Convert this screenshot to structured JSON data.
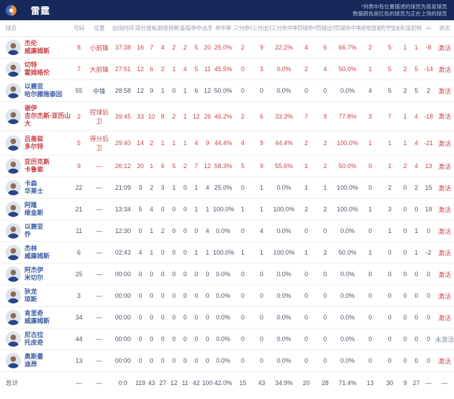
{
  "team_bar": {
    "team_name": "雷霆",
    "note_line1": "*列表中有位置描述的球员为首发球员",
    "note_line2": "数据颜色是红色的球员为正在上场的球员"
  },
  "columns": [
    "球员",
    "号码",
    "位置",
    "出场时间",
    "得分",
    "篮板",
    "助攻",
    "抢断",
    "盖帽",
    "命中",
    "出手",
    "命中率",
    "三分命中",
    "三分出手",
    "三分命中率",
    "罚球命中",
    "罚球出手",
    "罚球命中率",
    "进攻篮板",
    "防守篮板",
    "失误",
    "犯规",
    "+/-",
    "状态"
  ],
  "stat_keys": [
    "points",
    "rebounds",
    "assists",
    "steals",
    "blocks",
    "fgm",
    "fga",
    "fg-pct",
    "3pm",
    "3pa",
    "3p-pct",
    "ftm",
    "fta",
    "ft-pct",
    "oreb",
    "dreb",
    "turnovers",
    "fouls",
    "plus-minus"
  ],
  "labels": {
    "active": "激活",
    "inactive": "未激活",
    "total": "总计",
    "empty": "—"
  },
  "colors": {
    "header_bar": "#17295a",
    "on_court_red": "#c8444c",
    "name_blue": "#3d5fa5",
    "muted_text": "#4a5568",
    "column_header_text": "#94a0b4",
    "inactive_gray": "#8a94a6"
  },
  "players": [
    {
      "name1": "杰伦",
      "name2": "威廉姆斯",
      "number": "8",
      "position": "小前锋",
      "time": "37:38",
      "on_court": true,
      "stats": [
        16,
        7,
        4,
        2,
        2,
        5,
        20,
        "25.0%",
        2,
        9,
        "22.2%",
        4,
        6,
        "66.7%",
        2,
        5,
        1,
        1,
        "-8"
      ],
      "status": "激活"
    },
    {
      "name1": "切特",
      "name2": "霍姆格伦",
      "number": "7",
      "position": "大前锋",
      "time": "27:51",
      "on_court": true,
      "stats": [
        12,
        6,
        2,
        1,
        4,
        5,
        11,
        "45.5%",
        0,
        3,
        "0.0%",
        2,
        4,
        "50.0%",
        1,
        5,
        2,
        5,
        "-14"
      ],
      "status": "激活"
    },
    {
      "name1": "以赛亚",
      "name2": "哈尔滕施泰因",
      "number": "55",
      "position": "中锋",
      "time": "28:58",
      "on_court": false,
      "stats": [
        12,
        9,
        1,
        0,
        1,
        6,
        12,
        "50.0%",
        0,
        0,
        "0.0%",
        0,
        0,
        "0.0%",
        4,
        5,
        2,
        5,
        "2"
      ],
      "status": "激活"
    },
    {
      "name1": "谢伊",
      "name2": "吉尔杰斯-亚历山大",
      "number": "2",
      "position": "控球后卫",
      "time": "39:45",
      "on_court": true,
      "stats": [
        33,
        10,
        8,
        2,
        1,
        12,
        26,
        "46.2%",
        2,
        6,
        "33.3%",
        7,
        9,
        "77.8%",
        3,
        7,
        1,
        4,
        "-18"
      ],
      "status": "激活"
    },
    {
      "name1": "吕盖兹",
      "name2": "多尔特",
      "number": "5",
      "position": "得分后卫",
      "time": "29:40",
      "on_court": true,
      "stats": [
        14,
        2,
        1,
        1,
        1,
        4,
        9,
        "44.4%",
        4,
        9,
        "44.4%",
        2,
        2,
        "100.0%",
        1,
        1,
        1,
        4,
        "-21"
      ],
      "status": "激活"
    },
    {
      "name1": "亚历克斯",
      "name2": "卡鲁索",
      "number": "9",
      "position": "—",
      "time": "26:12",
      "on_court": true,
      "stats": [
        20,
        1,
        6,
        5,
        2,
        7,
        12,
        "58.3%",
        5,
        9,
        "55.6%",
        1,
        2,
        "50.0%",
        0,
        1,
        2,
        4,
        "13"
      ],
      "status": "激活"
    },
    {
      "name1": "卡森",
      "name2": "华莱士",
      "number": "22",
      "position": "—",
      "time": "21:09",
      "on_court": false,
      "stats": [
        3,
        2,
        3,
        1,
        0,
        1,
        4,
        "25.0%",
        0,
        1,
        "0.0%",
        1,
        1,
        "100.0%",
        0,
        2,
        0,
        2,
        "15"
      ],
      "status": "激活"
    },
    {
      "name1": "阿隆",
      "name2": "维金斯",
      "number": "21",
      "position": "—",
      "time": "13:34",
      "on_court": false,
      "stats": [
        5,
        4,
        0,
        0,
        0,
        1,
        1,
        "100.0%",
        1,
        1,
        "100.0%",
        2,
        2,
        "100.0%",
        1,
        3,
        0,
        0,
        "19"
      ],
      "status": "激活"
    },
    {
      "name1": "以赛亚",
      "name2": "乔",
      "number": "11",
      "position": "—",
      "time": "12:30",
      "on_court": false,
      "stats": [
        0,
        1,
        2,
        0,
        0,
        0,
        4,
        "0.0%",
        0,
        4,
        "0.0%",
        0,
        0,
        "0.0%",
        0,
        1,
        0,
        1,
        "0"
      ],
      "status": "激活"
    },
    {
      "name1": "杰林",
      "name2": "威廉姆斯",
      "number": "6",
      "position": "—",
      "time": "02:43",
      "on_court": false,
      "stats": [
        4,
        1,
        0,
        0,
        0,
        1,
        1,
        "100.0%",
        1,
        1,
        "100.0%",
        1,
        2,
        "50.0%",
        1,
        0,
        0,
        1,
        "-2"
      ],
      "status": "激活"
    },
    {
      "name1": "阿杰伊",
      "name2": "米切尔",
      "number": "25",
      "position": "—",
      "time": "00:00",
      "on_court": false,
      "stats": [
        0,
        0,
        0,
        0,
        0,
        0,
        0,
        "0.0%",
        0,
        0,
        "0.0%",
        0,
        0,
        "0.0%",
        0,
        0,
        0,
        0,
        "0"
      ],
      "status": "激活"
    },
    {
      "name1": "狄龙",
      "name2": "琼斯",
      "number": "3",
      "position": "—",
      "time": "00:00",
      "on_court": false,
      "stats": [
        0,
        0,
        0,
        0,
        0,
        0,
        0,
        "0.0%",
        0,
        0,
        "0.0%",
        0,
        0,
        "0.0%",
        0,
        0,
        0,
        0,
        "0"
      ],
      "status": "激活"
    },
    {
      "name1": "肯里奇",
      "name2": "威廉姆斯",
      "number": "34",
      "position": "—",
      "time": "00:00",
      "on_court": false,
      "stats": [
        0,
        0,
        0,
        0,
        0,
        0,
        0,
        "0.0%",
        0,
        0,
        "0.0%",
        0,
        0,
        "0.0%",
        0,
        0,
        0,
        0,
        "0"
      ],
      "status": "激活"
    },
    {
      "name1": "尼古拉",
      "name2": "托皮奇",
      "number": "44",
      "position": "—",
      "time": "00:00",
      "on_court": false,
      "stats": [
        0,
        0,
        0,
        0,
        0,
        0,
        0,
        "0.0%",
        0,
        0,
        "0.0%",
        0,
        0,
        "0.0%",
        0,
        0,
        0,
        0,
        "0"
      ],
      "status": "未激活"
    },
    {
      "name1": "奥斯曼",
      "name2": "迪昂",
      "number": "13",
      "position": "—",
      "time": "00:00",
      "on_court": false,
      "stats": [
        0,
        0,
        0,
        0,
        0,
        0,
        0,
        "0.0%",
        0,
        0,
        "0.0%",
        0,
        0,
        "0.0%",
        0,
        0,
        0,
        0,
        "0"
      ],
      "status": "激活"
    }
  ],
  "total": {
    "label": "总计",
    "number": "—",
    "position": "—",
    "time": "0:0",
    "stats": [
      119,
      43,
      27,
      12,
      11,
      42,
      100,
      "42.0%",
      15,
      43,
      "34.9%",
      20,
      28,
      "71.4%",
      13,
      30,
      9,
      27,
      "—"
    ],
    "status": "—"
  }
}
